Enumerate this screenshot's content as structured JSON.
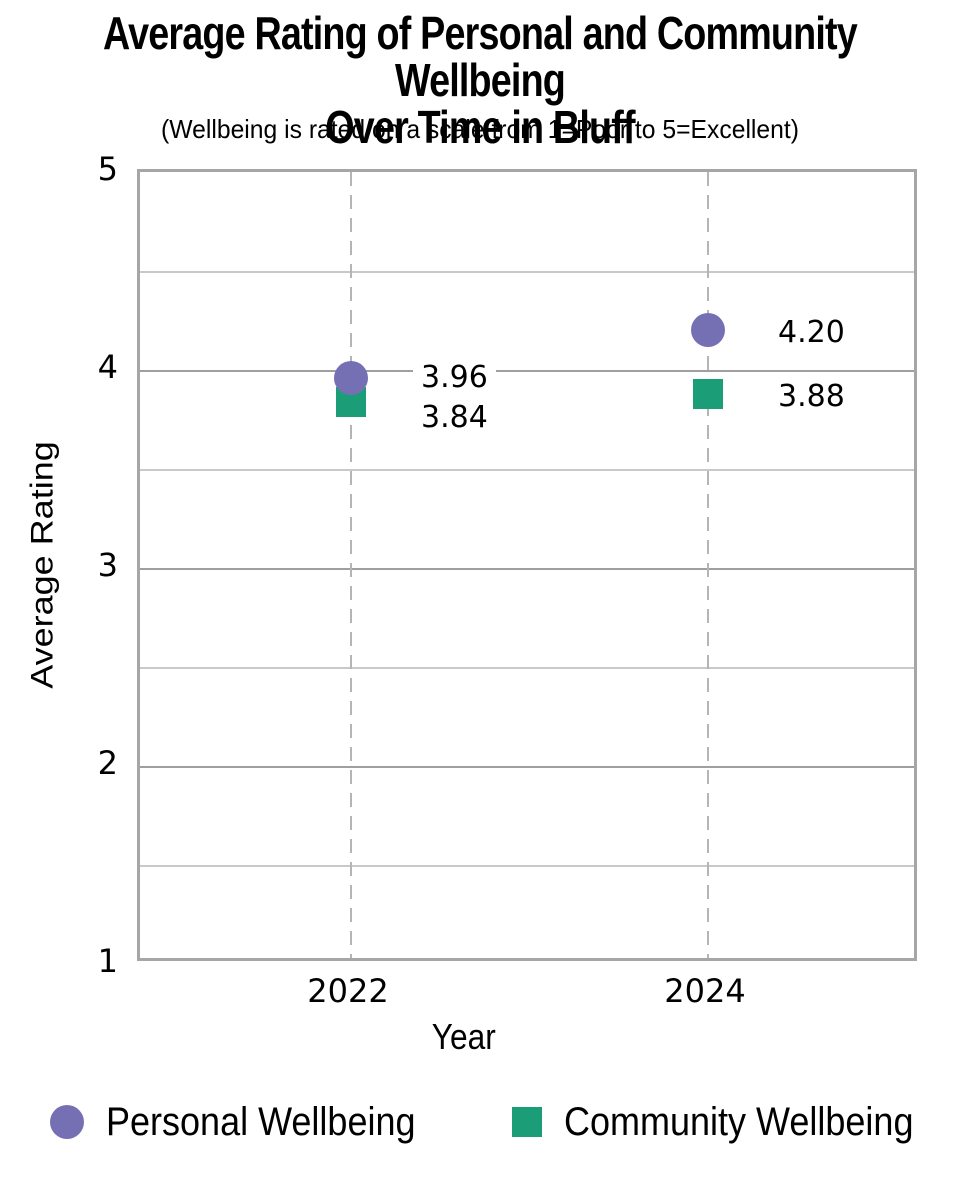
{
  "header": {
    "title_line1": "Average Rating of Personal and Community Wellbeing",
    "title_line2": "Over Time in Bluff",
    "subtitle": "(Wellbeing is rated on a scale from 1=Poor to 5=Excellent)"
  },
  "chart_data": {
    "type": "scatter",
    "title": "Average Rating of Personal and Community Wellbeing Over Time in Bluff",
    "subtitle": "(Wellbeing is rated on a scale from 1=Poor to 5=Excellent)",
    "categories": [
      "2022",
      "2024"
    ],
    "series": [
      {
        "name": "Personal Wellbeing",
        "marker": "circle",
        "color": "#7570b3",
        "values": [
          3.96,
          4.2
        ],
        "data_labels": [
          "3.96",
          "4.20"
        ]
      },
      {
        "name": "Community Wellbeing",
        "marker": "square",
        "color": "#1b9e77",
        "values": [
          3.84,
          3.88
        ],
        "data_labels": [
          "3.84",
          "3.88"
        ]
      }
    ],
    "xlabel": "Year",
    "ylabel": "Average Rating",
    "ylim": [
      1,
      5
    ],
    "yticks": [
      5,
      4,
      3,
      2,
      1
    ],
    "grid": true,
    "grid_step": 0.5,
    "x_gridline_style": "dashed",
    "legend_position": "bottom"
  },
  "colors": {
    "plot_border": "#a6a6a6",
    "major_gridline": "#9f9f9f",
    "minor_gridline": "#c9c9c9",
    "dashed_gridline": "#b5b5b5",
    "text": "#000000",
    "background": "#ffffff",
    "personal_series": "#7570b3",
    "community_series": "#1b9e77"
  }
}
